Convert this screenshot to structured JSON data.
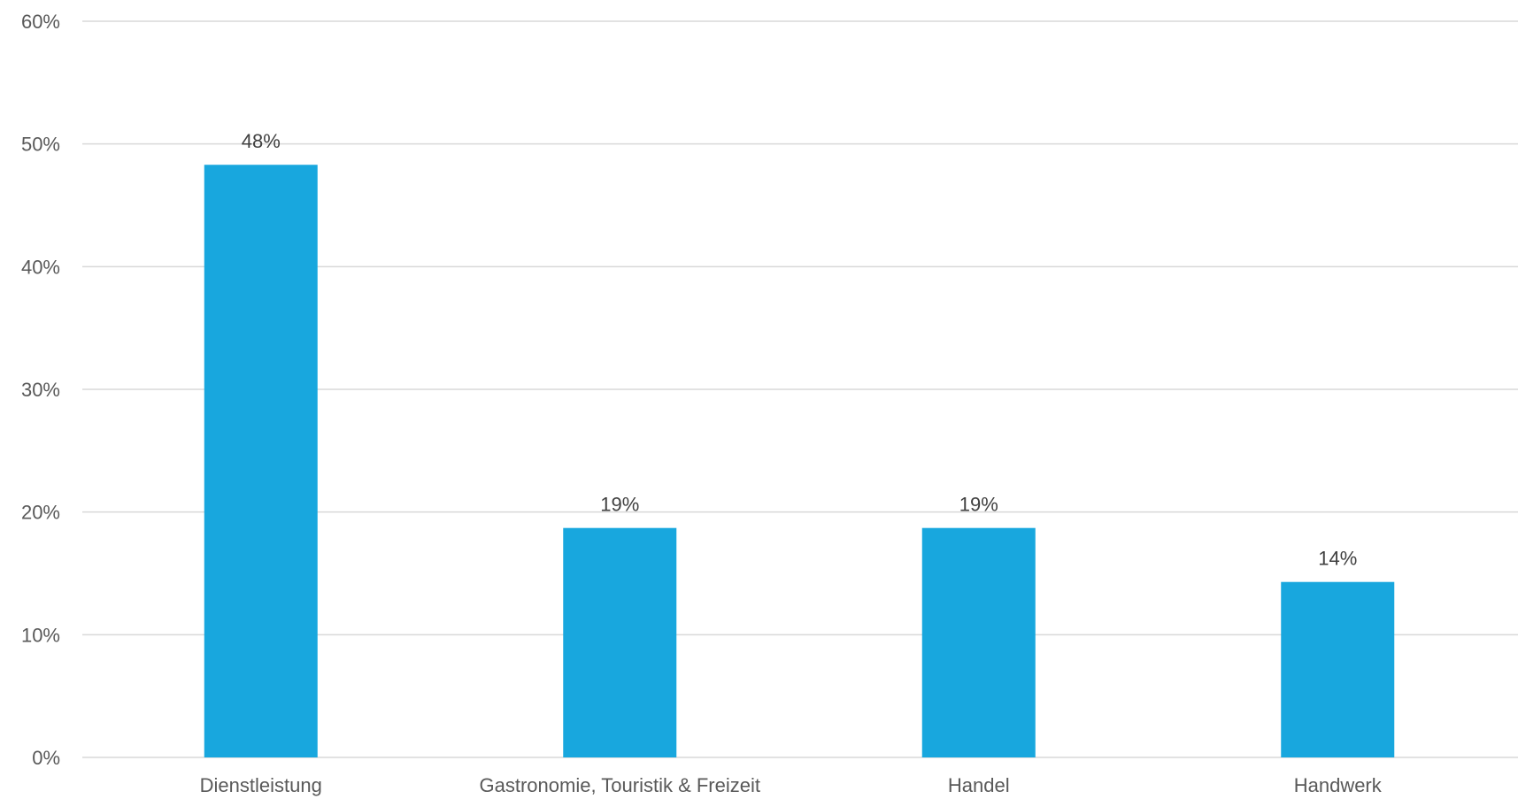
{
  "chart_data": {
    "type": "bar",
    "categories": [
      "Dienstleistung",
      "Gastronomie, Touristik & Freizeit",
      "Handel",
      "Handwerk"
    ],
    "values": [
      48.3,
      18.7,
      18.7,
      14.3
    ],
    "data_labels": [
      "48%",
      "19%",
      "19%",
      "14%"
    ],
    "y_ticks": [
      0,
      10,
      20,
      30,
      40,
      50,
      60
    ],
    "y_tick_labels": [
      "0%",
      "10%",
      "20%",
      "30%",
      "40%",
      "50%",
      "60%"
    ],
    "ylim": [
      0,
      60
    ],
    "title": "",
    "xlabel": "",
    "ylabel": "",
    "grid": true,
    "legend": "none",
    "bar_color": "#18A7DE"
  }
}
